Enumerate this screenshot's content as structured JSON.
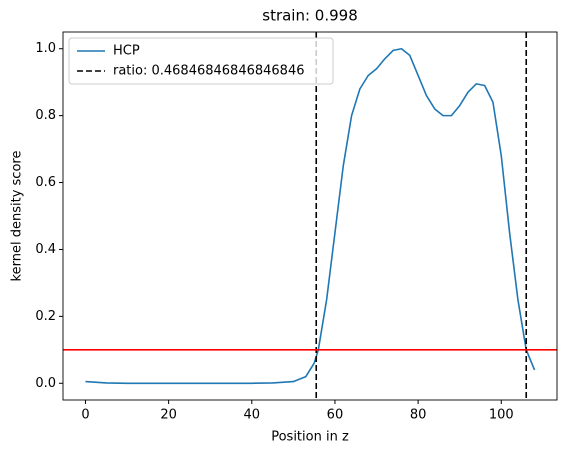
{
  "chart_data": {
    "type": "line",
    "title": "strain: 0.998",
    "xlabel": "Position in z",
    "ylabel": "kernel density score",
    "x": [
      0,
      5,
      10,
      20,
      30,
      40,
      45,
      50,
      53,
      55,
      56,
      58,
      60,
      62,
      64,
      66,
      68,
      70,
      72,
      74,
      76,
      78,
      80,
      82,
      84,
      86,
      88,
      90,
      92,
      94,
      96,
      98,
      100,
      102,
      104,
      106,
      108
    ],
    "series": [
      {
        "name": "HCP",
        "color": "#1f77b4",
        "values": [
          0.005,
          0.001,
          0,
          0,
          0,
          0,
          0.001,
          0.005,
          0.02,
          0.06,
          0.1,
          0.25,
          0.45,
          0.65,
          0.8,
          0.88,
          0.92,
          0.94,
          0.97,
          0.995,
          1.0,
          0.98,
          0.92,
          0.86,
          0.82,
          0.8,
          0.8,
          0.83,
          0.87,
          0.895,
          0.89,
          0.84,
          0.68,
          0.45,
          0.25,
          0.1,
          0.04
        ]
      }
    ],
    "vlines": {
      "name": "ratio: 0.46846846846846846",
      "color": "#000000",
      "x": [
        55.5,
        106
      ]
    },
    "hline": {
      "y": 0.1,
      "color": "#ff0000"
    },
    "xlim": [
      -5.4,
      113.4
    ],
    "ylim": [
      -0.05,
      1.05
    ],
    "xticks": [
      0,
      20,
      40,
      60,
      80,
      100
    ],
    "yticks": [
      {
        "value": 0,
        "label": "0.0"
      },
      {
        "value": 0.2,
        "label": "0.2"
      },
      {
        "value": 0.4,
        "label": "0.4"
      },
      {
        "value": 0.6,
        "label": "0.6"
      },
      {
        "value": 0.8,
        "label": "0.8"
      },
      {
        "value": 1,
        "label": "1.0"
      }
    ],
    "legend": "upper left"
  }
}
